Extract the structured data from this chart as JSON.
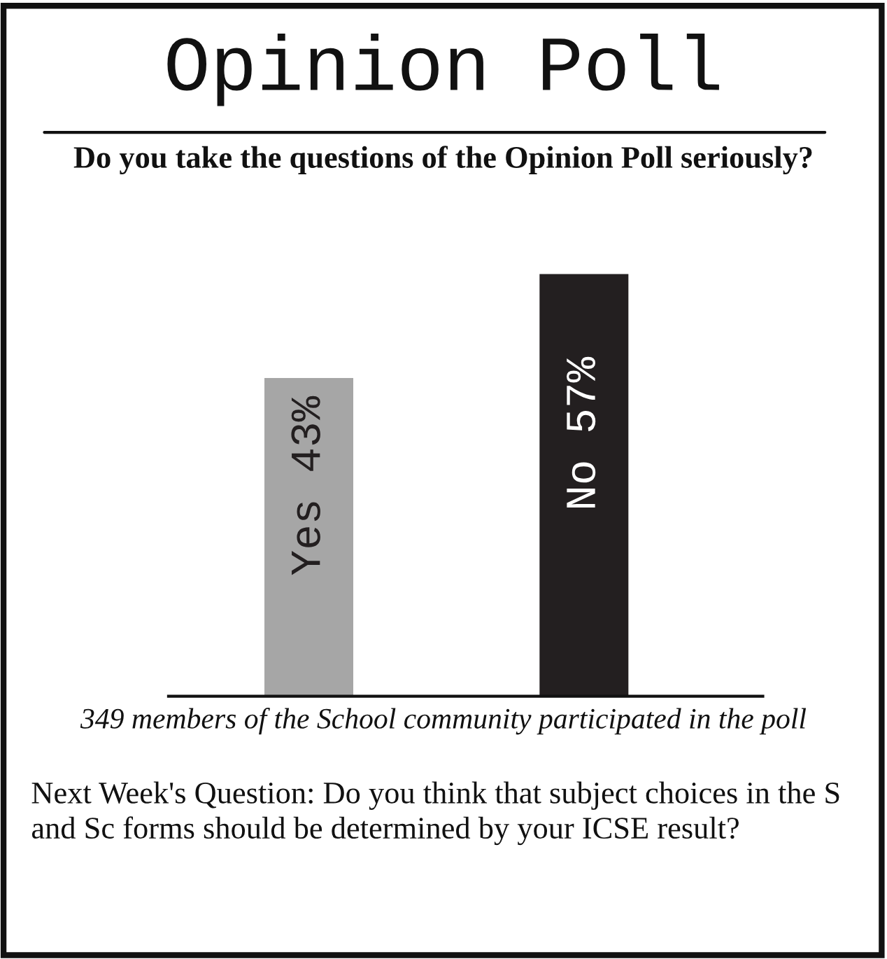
{
  "chart_data": {
    "type": "bar",
    "title": "Opinion Poll",
    "subtitle": "Do you take the questions of the Opinion Poll seriously?",
    "categories": [
      null,
      null
    ],
    "values": [
      43,
      57
    ],
    "colors": [
      "#a6a6a6",
      "#231f20"
    ],
    "value_labels": [
      "Yes 43%",
      "No 57%"
    ],
    "annotations": [
      "349 members of the School community participated in the poll",
      "Next Week's Question: Do you think that subject choices in the S and Sc forms should be determined by your ICSE result?"
    ],
    "grid": false,
    "legend": false
  }
}
